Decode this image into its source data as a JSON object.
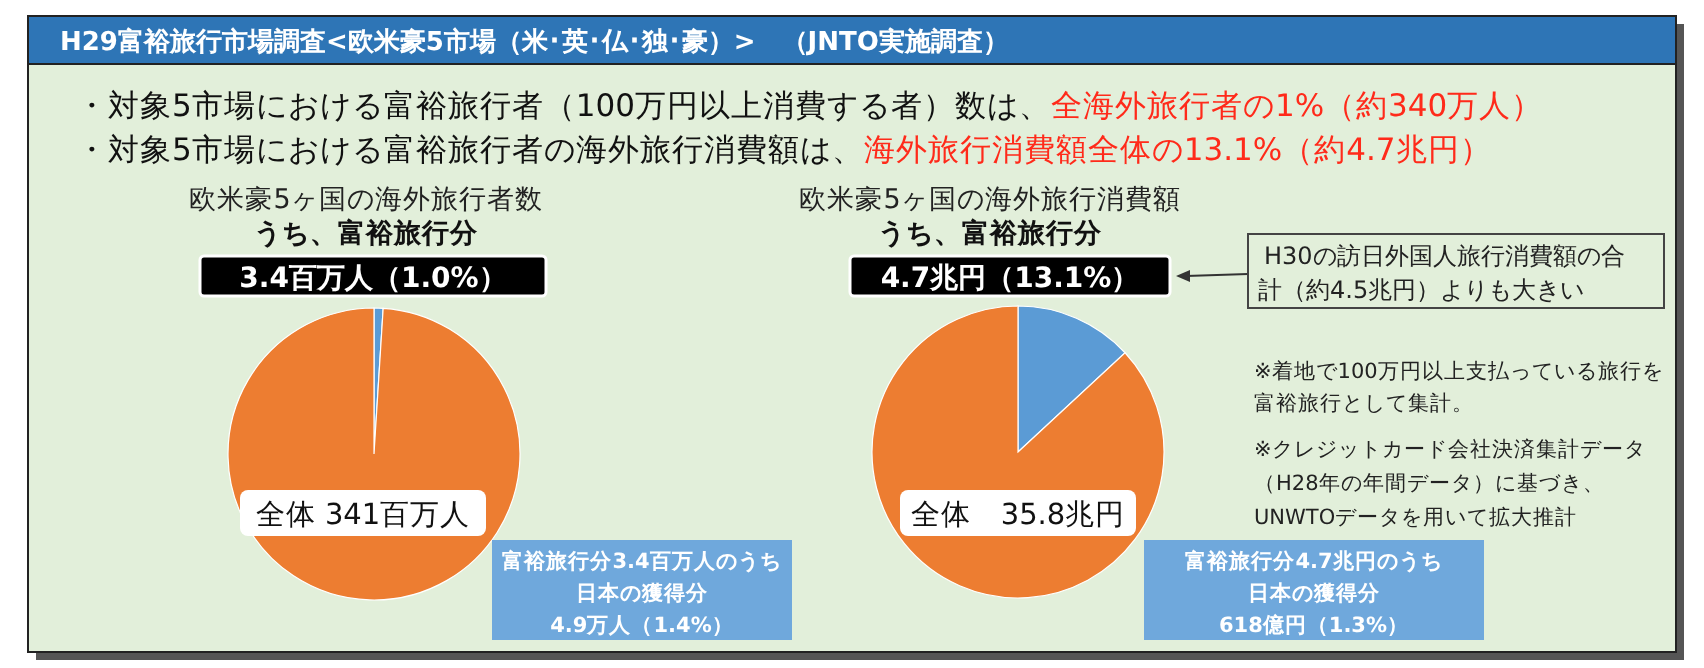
{
  "chart_data": [
    {
      "type": "other",
      "title": "H29富裕旅行市場調査<欧米豪5市場（米･英･仏･独･豪）>　（JNTO実施調査）",
      "annotations": [
        "・対象5市場における富裕旅行者（100万円以上消費する者）数は、",
        "全海外旅行者の1%（約340万人）",
        "・対象5市場における富裕旅行者の海外旅行消費額は、",
        "海外旅行消費額全体の13.1%（約4.7兆円）"
      ]
    },
    {
      "type": "pie",
      "title": "欧米豪5ヶ国の海外旅行者数",
      "subtitle": "うち、富裕旅行分",
      "categories": [
        "3.4百万人（1.0%）",
        "全体 341百万人"
      ],
      "values": [
        1.0,
        99.0
      ],
      "colors": [
        "#5b9bd5",
        "#ed7d31"
      ],
      "annotations": [
        "富裕旅行分3.4百万人のうち",
        "日本の獲得分",
        "4.9万人（1.4%）"
      ]
    },
    {
      "type": "pie",
      "title": "欧米豪5ヶ国の海外旅行消費額",
      "subtitle": "うち、富裕旅行分",
      "categories": [
        "4.7兆円（13.1%）",
        "全体　35.8兆円"
      ],
      "values": [
        13.1,
        86.9
      ],
      "colors": [
        "#5b9bd5",
        "#ed7d31"
      ],
      "annotations": [
        "富裕旅行分4.7兆円のうち",
        "日本の獲得分",
        "618億円（1.3%）",
        "H30の訪日外国人旅行消費額の合",
        "計（約4.5兆円）よりも大きい",
        "※着地で100万円以上支払っている旅行を",
        "富裕旅行として集計。",
        "※クレジットカード会社決済集計データ",
        "（H28年の年間データ）に基づき、",
        "UNWTOデータを用いて拡大推計"
      ]
    }
  ]
}
